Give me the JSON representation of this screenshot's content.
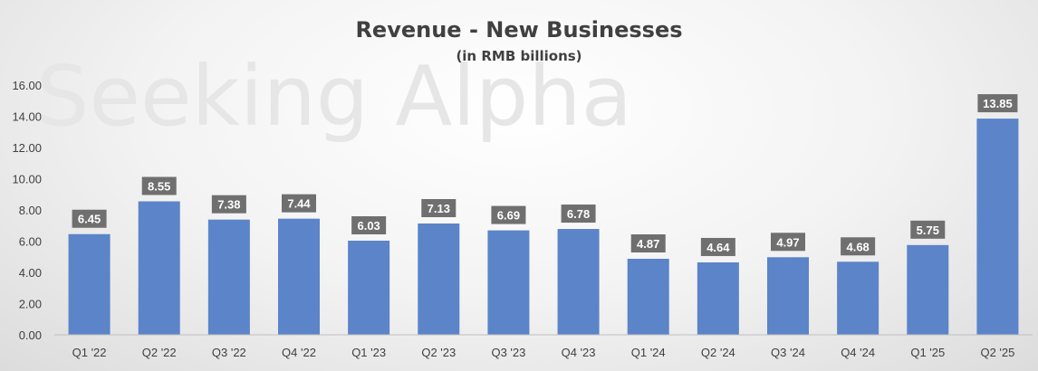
{
  "watermark": "Seeking Alpha",
  "chart_data": {
    "type": "bar",
    "title": "Revenue - New Businesses",
    "subtitle": "(in RMB billions)",
    "categories": [
      "Q1 '22",
      "Q2 '22",
      "Q3 '22",
      "Q4 '22",
      "Q1 '23",
      "Q2 '23",
      "Q3 '23",
      "Q4 '23",
      "Q1 '24",
      "Q2 '24",
      "Q3 '24",
      "Q4 '24",
      "Q1 '25",
      "Q2 '25"
    ],
    "values": [
      6.45,
      8.55,
      7.38,
      7.44,
      6.03,
      7.13,
      6.69,
      6.78,
      4.87,
      4.64,
      4.97,
      4.68,
      5.75,
      13.85
    ],
    "data_labels": [
      "6.45",
      "8.55",
      "7.38",
      "7.44",
      "6.03",
      "7.13",
      "6.69",
      "6.78",
      "4.87",
      "4.64",
      "4.97",
      "4.68",
      "5.75",
      "13.85"
    ],
    "yticks": [
      "0.00",
      "2.00",
      "4.00",
      "6.00",
      "8.00",
      "10.00",
      "12.00",
      "14.00",
      "16.00"
    ],
    "ylim": [
      0,
      16
    ],
    "xlabel": "",
    "ylabel": "",
    "bar_color": "#5b84c9",
    "label_box_color": "#6f6f6f",
    "grid": false,
    "legend": "none"
  }
}
